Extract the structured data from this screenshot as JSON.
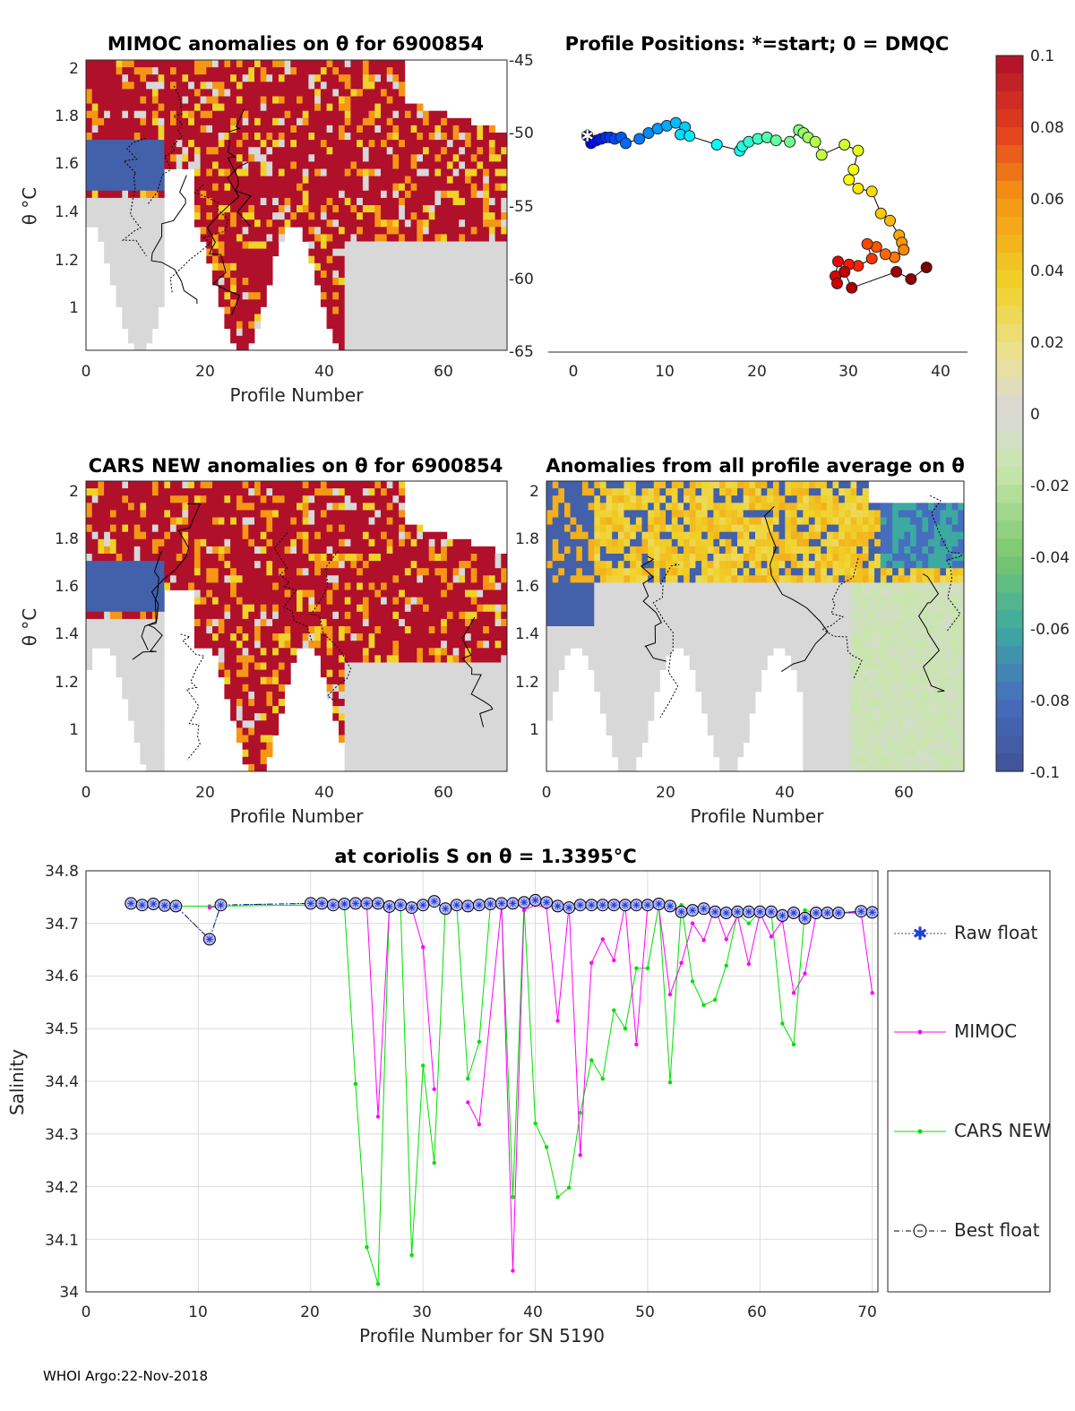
{
  "colors": {
    "anom_hi": "#b0102a",
    "anom_mid_hi": "#f2a51e",
    "anom_zero": "#d8d8d8",
    "anom_mid_lo": "#9fd78a",
    "anom_lo": "#3f5fa0",
    "raw": "#1f3fd0",
    "mimoc": "#ff00ff",
    "cars": "#00e000",
    "best": "#000000"
  },
  "panels": {
    "p1": {
      "title": "MIMOC anomalies on θ  for 6900854",
      "xlabel": "Profile Number",
      "ylabel": "θ °C",
      "xticks": [
        "0",
        "20",
        "40",
        "60"
      ],
      "yticks": [
        "2",
        "1.8",
        "1.6",
        "1.4",
        "1.2",
        "1"
      ],
      "ryticks": [
        "-45",
        "-50",
        "-55",
        "-60",
        "-65"
      ]
    },
    "p2": {
      "title": "Profile Positions: *=start; 0 = DMQC",
      "xticks": [
        "0",
        "10",
        "20",
        "30",
        "40"
      ]
    },
    "p3": {
      "title": "CARS NEW anomalies on θ for 6900854",
      "xlabel": "Profile Number",
      "ylabel": "θ °C",
      "xticks": [
        "0",
        "20",
        "40",
        "60"
      ],
      "yticks": [
        "2",
        "1.8",
        "1.6",
        "1.4",
        "1.2",
        "1"
      ]
    },
    "p4": {
      "title": "Anomalies from all profile average on θ",
      "xlabel": "Profile Number",
      "xticks": [
        "0",
        "20",
        "40",
        "60"
      ],
      "yticks": [
        "2",
        "1.8",
        "1.6",
        "1.4",
        "1.2",
        "1"
      ]
    },
    "colorbar": {
      "ticks": [
        "0.1",
        "0.08",
        "0.06",
        "0.04",
        "0.02",
        "0",
        "-0.02",
        "-0.04",
        "-0.06",
        "-0.08",
        "-0.1"
      ]
    },
    "p5": {
      "title": "at coriolis S on θ = 1.3395°C",
      "xlabel": "Profile Number for SN 5190",
      "ylabel": "Salinity",
      "xticks": [
        "0",
        "10",
        "20",
        "30",
        "40",
        "50",
        "60",
        "70"
      ],
      "yticks": [
        "34.8",
        "34.7",
        "34.6",
        "34.5",
        "34.4",
        "34.3",
        "34.2",
        "34.1",
        "34"
      ],
      "legend": [
        "Raw float",
        "MIMOC",
        "CARS NEW",
        "Best float"
      ]
    }
  },
  "chart_data": [
    {
      "type": "line",
      "title": "at coriolis S on θ = 1.3395°C",
      "xlabel": "Profile Number for SN 5190",
      "ylabel": "Salinity",
      "xlim": [
        0,
        70.5
      ],
      "ylim": [
        34.0,
        34.8
      ],
      "grid": true,
      "legend_position": "right",
      "series": [
        {
          "name": "Raw float",
          "x": [
            4,
            5,
            6,
            7,
            8,
            11,
            12,
            20,
            21,
            22,
            23,
            24,
            25,
            26,
            27,
            28,
            29,
            30,
            31,
            32,
            33,
            34,
            35,
            36,
            37,
            38,
            39,
            40,
            41,
            42,
            43,
            44,
            45,
            46,
            47,
            48,
            49,
            50,
            51,
            52,
            53,
            54,
            55,
            56,
            57,
            58,
            59,
            60,
            61,
            62,
            63,
            64,
            65,
            66,
            67,
            69,
            70
          ],
          "y": [
            34.738,
            34.735,
            34.737,
            34.734,
            34.733,
            34.67,
            34.735,
            34.738,
            34.738,
            34.735,
            34.737,
            34.738,
            34.738,
            34.738,
            34.732,
            34.735,
            34.73,
            34.735,
            34.742,
            34.728,
            34.735,
            34.733,
            34.735,
            34.737,
            34.738,
            34.738,
            34.74,
            34.744,
            34.74,
            34.733,
            34.73,
            34.735,
            34.735,
            34.735,
            34.735,
            34.735,
            34.735,
            34.735,
            34.737,
            34.733,
            34.722,
            34.725,
            34.728,
            34.722,
            34.72,
            34.722,
            34.722,
            34.722,
            34.722,
            34.715,
            34.72,
            34.71,
            34.72,
            34.72,
            34.72,
            34.723,
            34.721
          ]
        },
        {
          "name": "MIMOC",
          "x": [
            4,
            5,
            6,
            7,
            8,
            11,
            12,
            20,
            21,
            22,
            23,
            24,
            25,
            26,
            27,
            28,
            29,
            30,
            31,
            34,
            35,
            37,
            38,
            39,
            40,
            41,
            42,
            43,
            44,
            45,
            46,
            47,
            48,
            49,
            50,
            51,
            52,
            53,
            54,
            55,
            56,
            57,
            58,
            59,
            60,
            61,
            62,
            63,
            64,
            65,
            66,
            67,
            69,
            70
          ],
          "y": [
            34.735,
            34.735,
            34.735,
            34.735,
            34.733,
            34.73,
            34.733,
            34.735,
            34.733,
            34.732,
            34.733,
            34.735,
            34.735,
            34.333,
            34.73,
            34.735,
            34.73,
            34.655,
            34.385,
            34.36,
            34.318,
            34.735,
            34.04,
            34.725,
            34.735,
            34.73,
            34.515,
            34.735,
            34.26,
            34.625,
            34.67,
            34.63,
            34.735,
            34.47,
            34.735,
            34.73,
            34.565,
            34.625,
            34.7,
            34.668,
            34.73,
            34.67,
            34.715,
            34.623,
            34.72,
            34.675,
            34.705,
            34.568,
            34.605,
            34.715,
            34.72,
            34.72,
            34.72,
            34.568
          ]
        },
        {
          "name": "CARS NEW",
          "x": [
            4,
            5,
            6,
            7,
            8,
            11,
            12,
            20,
            21,
            22,
            23,
            24,
            25,
            26,
            27,
            28,
            29,
            30,
            31,
            32,
            33,
            34,
            35,
            36,
            37,
            38,
            39,
            40,
            41,
            42,
            43,
            44,
            45,
            46,
            47,
            48,
            49,
            50,
            51,
            52,
            53,
            54,
            55,
            56,
            57,
            58,
            59,
            60,
            61,
            62,
            63,
            64,
            65,
            66,
            67,
            69,
            70
          ],
          "y": [
            34.735,
            34.735,
            34.735,
            34.735,
            34.733,
            34.733,
            34.733,
            34.735,
            34.735,
            34.735,
            34.735,
            34.395,
            34.085,
            34.015,
            34.735,
            34.735,
            34.07,
            34.43,
            34.245,
            34.735,
            34.735,
            34.405,
            34.475,
            34.735,
            34.735,
            34.18,
            34.735,
            34.32,
            34.275,
            34.18,
            34.198,
            34.34,
            34.44,
            34.405,
            34.535,
            34.5,
            34.615,
            34.615,
            34.735,
            34.398,
            34.735,
            34.59,
            34.545,
            34.555,
            34.62,
            34.72,
            34.7,
            34.722,
            34.722,
            34.51,
            34.47,
            34.725,
            34.72,
            34.72,
            34.72,
            34.723,
            34.72
          ]
        },
        {
          "name": "Best float",
          "x": [
            4,
            5,
            6,
            7,
            8,
            11,
            12,
            20,
            21,
            22,
            23,
            24,
            25,
            26,
            27,
            28,
            29,
            30,
            31,
            32,
            33,
            34,
            35,
            36,
            37,
            38,
            39,
            40,
            41,
            42,
            43,
            44,
            45,
            46,
            47,
            48,
            49,
            50,
            51,
            52,
            53,
            54,
            55,
            56,
            57,
            58,
            59,
            60,
            61,
            62,
            63,
            64,
            65,
            66,
            67,
            69,
            70
          ],
          "y": [
            34.738,
            34.735,
            34.737,
            34.734,
            34.733,
            34.67,
            34.735,
            34.738,
            34.738,
            34.735,
            34.737,
            34.738,
            34.738,
            34.738,
            34.732,
            34.735,
            34.73,
            34.735,
            34.742,
            34.728,
            34.735,
            34.733,
            34.735,
            34.737,
            34.738,
            34.738,
            34.74,
            34.744,
            34.74,
            34.733,
            34.73,
            34.735,
            34.735,
            34.735,
            34.735,
            34.735,
            34.735,
            34.735,
            34.737,
            34.733,
            34.722,
            34.725,
            34.728,
            34.722,
            34.72,
            34.722,
            34.722,
            34.722,
            34.722,
            34.715,
            34.72,
            34.71,
            34.72,
            34.72,
            34.72,
            34.723,
            34.721
          ]
        }
      ]
    },
    {
      "type": "scatter",
      "title": "Profile Positions: *=start; 0 = DMQC",
      "xlim": [
        -3,
        43
      ],
      "ylim": [
        -65,
        -45
      ],
      "y_tick_side": "left-of-panel",
      "x": [
        1.3,
        1.7,
        2.3,
        2.8,
        3.3,
        3.8,
        4.3,
        5,
        5.5,
        7,
        8,
        9,
        10,
        11,
        12,
        11.5,
        12.5,
        15.5,
        18,
        18.3,
        19,
        20,
        21,
        22,
        23.5,
        24.5,
        25,
        25.5,
        26.3,
        27,
        29.5,
        31,
        30.5,
        30,
        31,
        32.5,
        33.5,
        34.5,
        35.5,
        35.8,
        36,
        35,
        34,
        33,
        32,
        32.5,
        31,
        30,
        29.5,
        28.8,
        28.5,
        28.7,
        29.5,
        30.3,
        35.2,
        36.8,
        38.5
      ],
      "y": [
        -50.2,
        -50.7,
        -50.5,
        -50.4,
        -50.3,
        -50.3,
        -50.4,
        -50.3,
        -50.7,
        -50.4,
        -50,
        -49.7,
        -49.5,
        -49.3,
        -49.6,
        -50.1,
        -50.2,
        -50.8,
        -51.2,
        -50.9,
        -50.6,
        -50.4,
        -50.3,
        -50.5,
        -50.6,
        -49.8,
        -50,
        -50.3,
        -50.6,
        -51.5,
        -50.8,
        -51.2,
        -52.5,
        -53.2,
        -53.8,
        -54,
        -55.5,
        -56,
        -57,
        -57.5,
        -58,
        -58.5,
        -58.3,
        -57.8,
        -57.6,
        -58.6,
        -59.1,
        -59,
        -59.5,
        -58.8,
        -59.8,
        -60.3,
        -59.5,
        -60.6,
        -59.5,
        -60,
        -59.2
      ],
      "marker_colors_by_profile": "jet",
      "start_marker": "*"
    }
  ],
  "footer": "WHOI Argo:22-Nov-2018"
}
